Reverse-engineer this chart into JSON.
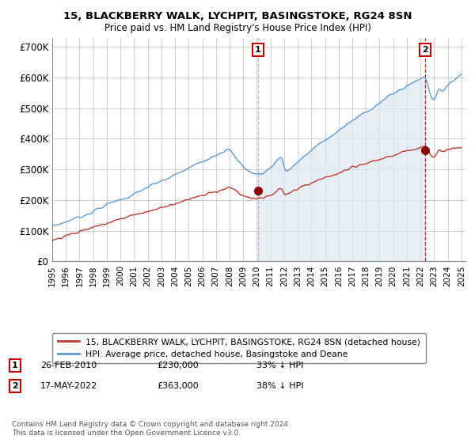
{
  "title_line1": "15, BLACKBERRY WALK, LYCHPIT, BASINGSTOKE, RG24 8SN",
  "title_line2": "Price paid vs. HM Land Registry's House Price Index (HPI)",
  "ylim": [
    0,
    730000
  ],
  "ytick_values": [
    0,
    100000,
    200000,
    300000,
    400000,
    500000,
    600000,
    700000
  ],
  "ytick_labels": [
    "£0",
    "£100K",
    "£200K",
    "£300K",
    "£400K",
    "£500K",
    "£600K",
    "£700K"
  ],
  "hpi_color": "#5b9bd5",
  "hpi_fill_color": "#dce9f5",
  "price_color": "#c0392b",
  "dot_color": "#8b0000",
  "legend_entries": [
    "15, BLACKBERRY WALK, LYCHPIT, BASINGSTOKE, RG24 8SN (detached house)",
    "HPI: Average price, detached house, Basingstoke and Deane"
  ],
  "annotation1_date": "26-FEB-2010",
  "annotation1_price": "£230,000",
  "annotation1_hpi": "33% ↓ HPI",
  "annotation2_date": "17-MAY-2022",
  "annotation2_price": "£363,000",
  "annotation2_hpi": "38% ↓ HPI",
  "footnote": "Contains HM Land Registry data © Crown copyright and database right 2024.\nThis data is licensed under the Open Government Licence v3.0.",
  "background_color": "#ffffff",
  "grid_color": "#cccccc",
  "vline1_color": "#aaaaaa",
  "vline2_color": "#cc0000"
}
